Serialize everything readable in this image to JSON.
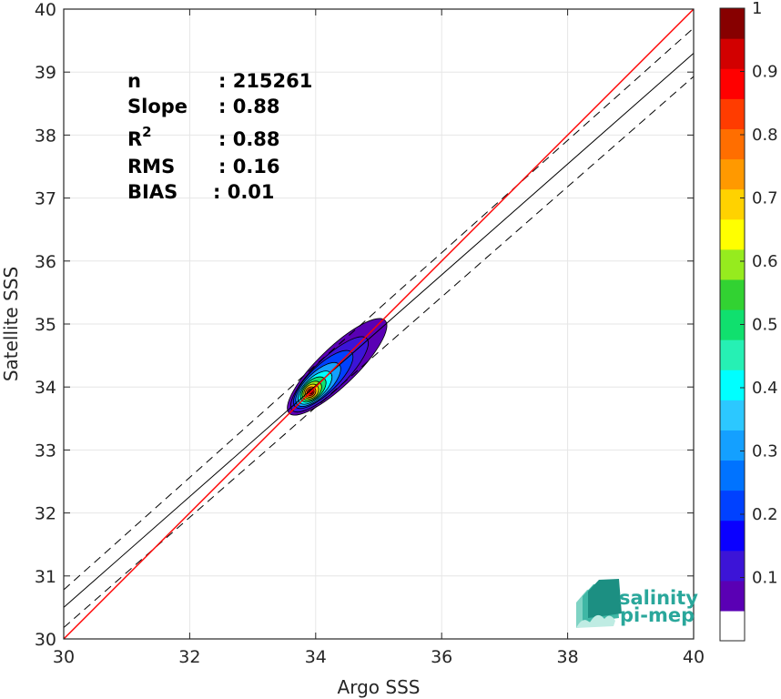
{
  "chart_data": {
    "type": "heatmap",
    "subtype": "density-contour-scatter",
    "title": "",
    "xlabel": "Argo SSS",
    "ylabel": "Satellite SSS",
    "xlim": [
      30,
      40
    ],
    "ylim": [
      30,
      40
    ],
    "xticks": [
      "30",
      "32",
      "34",
      "36",
      "38",
      "40"
    ],
    "yticks": [
      "30",
      "31",
      "32",
      "33",
      "34",
      "35",
      "36",
      "37",
      "38",
      "39",
      "40"
    ],
    "grid": true,
    "stats": [
      {
        "key": "n",
        "sup": "",
        "value": ": 215261"
      },
      {
        "key": "Slope",
        "sup": "",
        "value": ": 0.88"
      },
      {
        "key": "R",
        "sup": "2",
        "value": ": 0.88"
      },
      {
        "key": "RMS",
        "sup": "",
        "value": ": 0.16"
      },
      {
        "key": "BIAS",
        "sup": "",
        "value": ": 0.01"
      }
    ],
    "lines": {
      "identity": {
        "color": "#ff0000",
        "x": [
          30,
          40
        ],
        "y": [
          30,
          40
        ]
      },
      "regression": {
        "color": "#000000",
        "x": [
          30,
          40
        ],
        "y": [
          30.5,
          39.3
        ]
      },
      "regression_upper": {
        "color": "#000000",
        "dash": true,
        "x": [
          30,
          40
        ],
        "y": [
          30.78,
          39.7
        ]
      },
      "regression_lower": {
        "color": "#000000",
        "dash": true,
        "x": [
          30,
          40
        ],
        "y": [
          30.18,
          38.93
        ]
      }
    },
    "density_peak": {
      "x": 33.92,
      "y": 33.92
    },
    "colorbar": {
      "min": 0,
      "max": 1,
      "tick_labels": [
        "0.1",
        "0.2",
        "0.3",
        "0.4",
        "0.5",
        "0.6",
        "0.7",
        "0.8",
        "0.9",
        "1"
      ],
      "colors": [
        "#ffffff",
        "#5a00b4",
        "#3c14d7",
        "#0a00ff",
        "#0041ff",
        "#0073ff",
        "#14a0ff",
        "#2cc8ff",
        "#00ffff",
        "#26f0b4",
        "#10e06e",
        "#32d232",
        "#96eb1e",
        "#ffff00",
        "#ffd200",
        "#ff9900",
        "#ff6e00",
        "#ff3c00",
        "#ff0000",
        "#d20000",
        "#870000"
      ]
    }
  },
  "logo": {
    "line1": "salinity",
    "line2": "pi-mep"
  }
}
